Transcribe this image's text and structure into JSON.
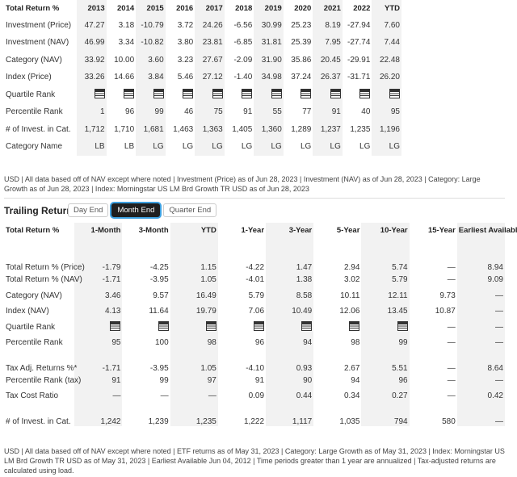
{
  "annual": {
    "header": [
      "Total Return %",
      "2013",
      "2014",
      "2015",
      "2016",
      "2017",
      "2018",
      "2019",
      "2020",
      "2021",
      "2022",
      "YTD"
    ],
    "rows": [
      {
        "label": "Investment (Price)",
        "cells": [
          "47.27",
          "3.18",
          "-10.79",
          "3.72",
          "24.26",
          "-6.56",
          "30.99",
          "25.23",
          "8.19",
          "-27.94",
          "7.60"
        ]
      },
      {
        "label": "Investment (NAV)",
        "cells": [
          "46.99",
          "3.34",
          "-10.82",
          "3.80",
          "23.81",
          "-6.85",
          "31.81",
          "25.39",
          "7.95",
          "-27.74",
          "7.44"
        ]
      },
      {
        "label": "Category (NAV)",
        "cells": [
          "33.92",
          "10.00",
          "3.60",
          "3.23",
          "27.67",
          "-2.09",
          "31.90",
          "35.86",
          "20.45",
          "-29.91",
          "22.48"
        ]
      },
      {
        "label": "Index (Price)",
        "cells": [
          "33.26",
          "14.66",
          "3.84",
          "5.46",
          "27.12",
          "-1.40",
          "34.98",
          "37.24",
          "26.37",
          "-31.71",
          "26.20"
        ]
      },
      {
        "label": "Quartile Rank",
        "cells": [
          null,
          null,
          null,
          null,
          null,
          null,
          null,
          null,
          null,
          null,
          null
        ]
      },
      {
        "label": "Percentile Rank",
        "cells": [
          "1",
          "96",
          "99",
          "46",
          "75",
          "91",
          "55",
          "77",
          "91",
          "40",
          "95"
        ]
      },
      {
        "label": "# of Invest. in Cat.",
        "cells": [
          "1,712",
          "1,710",
          "1,681",
          "1,463",
          "1,363",
          "1,405",
          "1,360",
          "1,289",
          "1,237",
          "1,235",
          "1,196"
        ]
      },
      {
        "label": "Category Name",
        "cells": [
          "LB",
          "LB",
          "LG",
          "LG",
          "LG",
          "LG",
          "LG",
          "LG",
          "LG",
          "LG",
          "LG"
        ]
      }
    ],
    "footnote": "USD | All data based off of NAV except where noted | Investment (Price) as of Jun 28, 2023 | Investment (NAV) as of Jun 28, 2023 | Category: Large Growth as of Jun 28, 2023 | Index: Morningstar US LM Brd Growth TR USD as of Jun 28, 2023"
  },
  "trailing": {
    "title": "Trailing Returns",
    "tabs": [
      "Day End",
      "Month End",
      "Quarter End"
    ],
    "header": [
      "Total Return %",
      "1-Month",
      "3-Month",
      "YTD",
      "1-Year",
      "3-Year",
      "5-Year",
      "10-Year",
      "15-Year",
      "Earliest Available"
    ],
    "rows": [
      {
        "label": "Total Return % (Price)",
        "cells": [
          "-1.79",
          "-4.25",
          "1.15",
          "-4.22",
          "1.47",
          "2.94",
          "5.74",
          "—",
          "8.94"
        ]
      },
      {
        "label": "Total Return % (NAV)",
        "cells": [
          "-1.71",
          "-3.95",
          "1.05",
          "-4.01",
          "1.38",
          "3.02",
          "5.79",
          "—",
          "9.09"
        ]
      },
      {
        "label": "Category (NAV)",
        "cells": [
          "3.46",
          "9.57",
          "16.49",
          "5.79",
          "8.58",
          "10.11",
          "12.11",
          "9.73",
          "—"
        ]
      },
      {
        "label": "Index (NAV)",
        "cells": [
          "4.13",
          "11.64",
          "19.79",
          "7.06",
          "10.49",
          "12.06",
          "13.45",
          "10.87",
          "—"
        ]
      },
      {
        "label": "Quartile Rank",
        "cells": [
          null,
          null,
          null,
          null,
          null,
          null,
          null,
          "—",
          "—"
        ]
      },
      {
        "label": "Percentile Rank",
        "cells": [
          "95",
          "100",
          "98",
          "96",
          "94",
          "98",
          "99",
          "—",
          "—"
        ]
      },
      {
        "label": "Tax Adj. Returns %*",
        "cells": [
          "-1.71",
          "-3.95",
          "1.05",
          "-4.10",
          "0.93",
          "2.67",
          "5.51",
          "—",
          "8.64"
        ]
      },
      {
        "label": "Percentile Rank (tax)",
        "cells": [
          "91",
          "99",
          "97",
          "91",
          "90",
          "94",
          "96",
          "—",
          "—"
        ]
      },
      {
        "label": "Tax Cost Ratio",
        "cells": [
          "—",
          "—",
          "—",
          "0.09",
          "0.44",
          "0.34",
          "0.27",
          "—",
          "0.42"
        ]
      },
      {
        "label": "# of Invest. in Cat.",
        "cells": [
          "1,242",
          "1,239",
          "1,235",
          "1,222",
          "1,117",
          "1,035",
          "794",
          "580",
          "—"
        ]
      }
    ],
    "footnote": "USD | All data based off of NAV except where noted | ETF returns as of May 31, 2023 | Category: Large Growth as of May 31, 2023 | Index: Morningstar US LM Brd Growth TR USD as of May 31, 2023 | Earliest Available Jun 04, 2012 | Time periods greater than 1 year are annualized | Tax-adjusted returns are calculated using load."
  }
}
